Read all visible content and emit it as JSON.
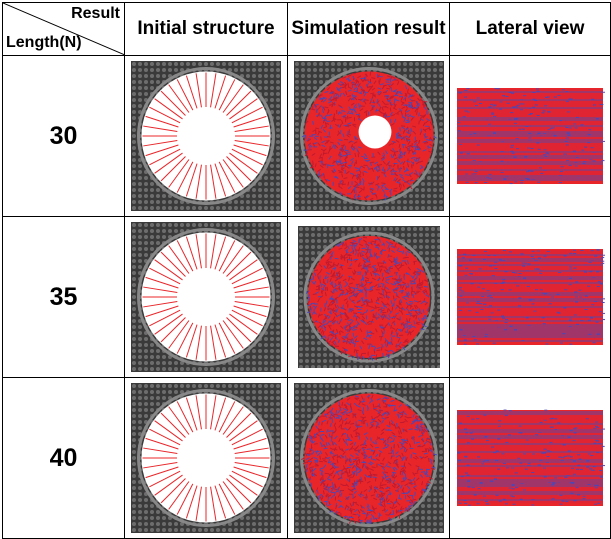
{
  "header": {
    "corner_top": "Result",
    "corner_bottom": "Length(N)",
    "col1": "Initial structure",
    "col2": "Simulation result",
    "col3": "Lateral view"
  },
  "rows": [
    {
      "length": "30",
      "hole_fraction": 0.3
    },
    {
      "length": "35",
      "hole_fraction": 0
    },
    {
      "length": "40",
      "hole_fraction": 0
    }
  ],
  "colors": {
    "matrix": "#3a3a3a",
    "fiber_red": "#e8262a",
    "fiber_blue": "#4a48b8",
    "ring": "#888888"
  }
}
